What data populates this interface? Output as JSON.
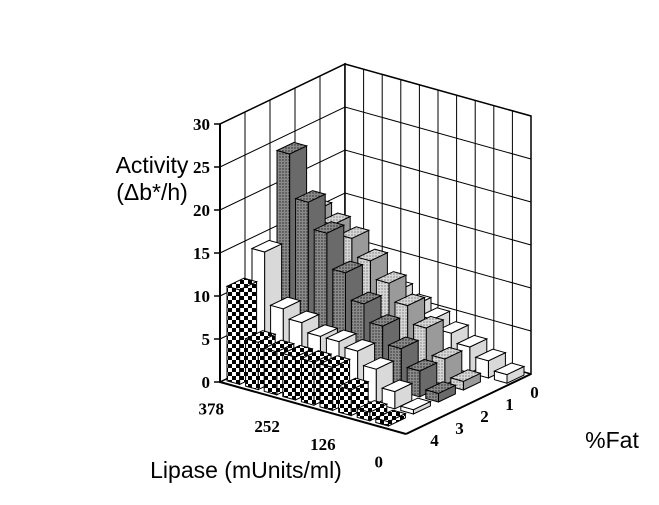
{
  "chart_data": {
    "type": "bar3d",
    "ylabel_line1": "Activity",
    "ylabel_line2": "(Δb*/h)",
    "xlabel": "Lipase (mUnits/ml)",
    "zlabel": "%Fat",
    "lipase_ticks": [
      "378",
      "252",
      "126",
      "0"
    ],
    "fat_ticks": [
      "4",
      "3",
      "2",
      "1",
      "0"
    ],
    "y_ticks": [
      "0",
      "5",
      "10",
      "15",
      "20",
      "25",
      "30"
    ],
    "ylim": [
      0,
      30
    ],
    "grid": true,
    "lipase_levels": [
      0,
      42,
      84,
      126,
      168,
      210,
      252,
      294,
      336,
      378
    ],
    "fat_levels": [
      4,
      3,
      2,
      1,
      0
    ],
    "series": [
      {
        "fat": 4,
        "values": [
          0,
          0.5,
          1,
          3,
          5,
          5,
          5,
          5,
          5.5,
          11
        ]
      },
      {
        "fat": 3,
        "values": [
          0,
          0.5,
          2,
          4,
          5.5,
          6,
          6,
          7,
          8,
          14
        ]
      },
      {
        "fat": 2,
        "values": [
          0,
          1,
          3,
          5,
          7,
          9,
          12,
          16,
          19,
          24
        ]
      },
      {
        "fat": 1,
        "values": [
          0,
          1,
          3,
          6,
          8,
          10,
          12,
          14,
          15,
          16
        ]
      },
      {
        "fat": 0,
        "values": [
          1,
          2,
          3,
          4,
          5,
          6,
          7,
          7,
          7,
          8
        ]
      }
    ],
    "colors": {
      "fat4": "checker",
      "fat3": "#ffffff",
      "fat2": "#bdbdbd",
      "fat1": "#dedede",
      "fat0": "#ffffff"
    }
  }
}
